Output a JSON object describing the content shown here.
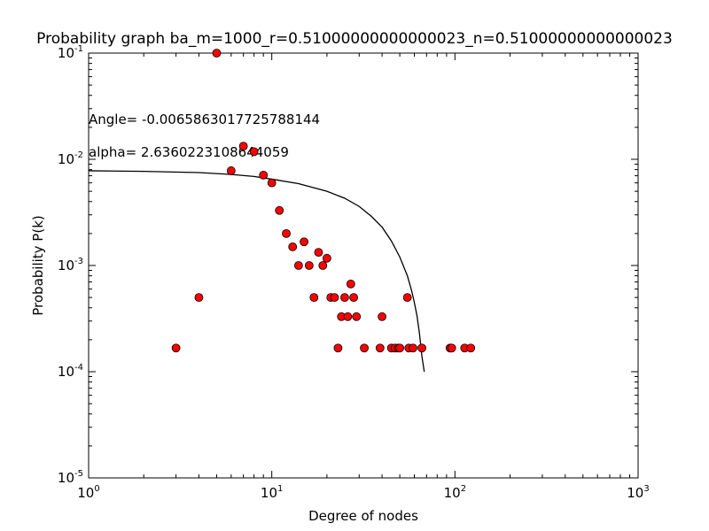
{
  "chart_data": {
    "type": "scatter",
    "title": "Probability graph ba_m=1000_r=0.51000000000000023_n=0.51000000000000023",
    "xlabel": "Degree of nodes",
    "ylabel": "Probability P(k)",
    "xscale": "log",
    "yscale": "log",
    "xlim": [
      1,
      1000
    ],
    "ylim": [
      1e-05,
      0.1
    ],
    "x_ticks": [
      {
        "value": 1,
        "base": "10",
        "exp": "0"
      },
      {
        "value": 10,
        "base": "10",
        "exp": "1"
      },
      {
        "value": 100,
        "base": "10",
        "exp": "2"
      },
      {
        "value": 1000,
        "base": "10",
        "exp": "3"
      }
    ],
    "y_ticks": [
      {
        "value": 1e-05,
        "base": "10",
        "exp": "-5"
      },
      {
        "value": 0.0001,
        "base": "10",
        "exp": "-4"
      },
      {
        "value": 0.001,
        "base": "10",
        "exp": "-3"
      },
      {
        "value": 0.01,
        "base": "10",
        "exp": "-2"
      },
      {
        "value": 0.1,
        "base": "10",
        "exp": "-1"
      }
    ],
    "annotations": [
      "Angle= -0.0065863017725788144",
      "alpha= 2.6360223108644059"
    ],
    "grid": false,
    "legend": "none",
    "series": [
      {
        "kind": "points",
        "color": "#ff0000",
        "edge_color": "#000000",
        "points": [
          [
            3,
            0.000167
          ],
          [
            4,
            0.0005
          ],
          [
            5,
            0.1
          ],
          [
            6,
            0.0078
          ],
          [
            7,
            0.0133
          ],
          [
            8,
            0.0118
          ],
          [
            9,
            0.0071
          ],
          [
            10,
            0.006
          ],
          [
            11,
            0.0033
          ],
          [
            12,
            0.002
          ],
          [
            13,
            0.0015
          ],
          [
            14,
            0.001
          ],
          [
            15,
            0.00167
          ],
          [
            16,
            0.001
          ],
          [
            17,
            0.0005
          ],
          [
            18,
            0.00133
          ],
          [
            19,
            0.001
          ],
          [
            20,
            0.00117
          ],
          [
            21,
            0.0005
          ],
          [
            22,
            0.0005
          ],
          [
            23,
            0.000167
          ],
          [
            24,
            0.00033
          ],
          [
            25,
            0.0005
          ],
          [
            26,
            0.00033
          ],
          [
            27,
            0.00067
          ],
          [
            28,
            0.0005
          ],
          [
            29,
            0.00033
          ],
          [
            32,
            0.000167
          ],
          [
            39,
            0.000167
          ],
          [
            40,
            0.00033
          ],
          [
            45,
            0.000167
          ],
          [
            47,
            0.000167
          ],
          [
            49,
            0.000167
          ],
          [
            50,
            0.000167
          ],
          [
            55,
            0.0005
          ],
          [
            56,
            0.000167
          ],
          [
            59,
            0.000167
          ],
          [
            66,
            0.000167
          ],
          [
            94,
            0.000167
          ],
          [
            96,
            0.000167
          ],
          [
            113,
            0.000167
          ],
          [
            122,
            0.000167
          ]
        ]
      },
      {
        "kind": "line",
        "color": "#000000",
        "points": [
          [
            1,
            0.0078
          ],
          [
            2,
            0.0077
          ],
          [
            4,
            0.0075
          ],
          [
            6,
            0.0072
          ],
          [
            8,
            0.0069
          ],
          [
            10,
            0.0065
          ],
          [
            14,
            0.0059
          ],
          [
            20,
            0.005
          ],
          [
            25,
            0.0043
          ],
          [
            30,
            0.0036
          ],
          [
            35,
            0.0029
          ],
          [
            40,
            0.0023
          ],
          [
            45,
            0.0017
          ],
          [
            50,
            0.0012
          ],
          [
            55,
            0.0008
          ],
          [
            58,
            0.00058
          ],
          [
            60,
            0.00045
          ],
          [
            62,
            0.00034
          ],
          [
            64,
            0.00023
          ],
          [
            66,
            0.00014
          ],
          [
            68,
            0.0001
          ]
        ]
      }
    ]
  }
}
